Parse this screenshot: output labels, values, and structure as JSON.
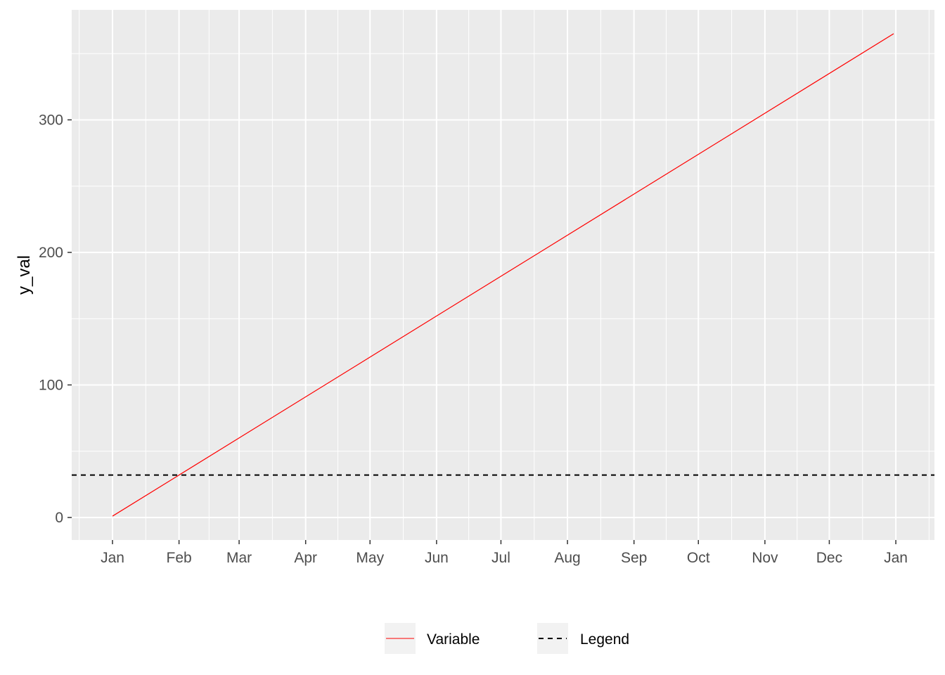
{
  "chart_data": {
    "type": "line",
    "title": "",
    "xlabel": "",
    "ylabel": "y_val",
    "x_tick_labels": [
      "Jan",
      "Feb",
      "Mar",
      "Apr",
      "May",
      "Jun",
      "Jul",
      "Aug",
      "Sep",
      "Oct",
      "Nov",
      "Dec",
      "Jan"
    ],
    "x_tick_dates": [
      "2021-01-01",
      "2021-02-01",
      "2021-03-01",
      "2021-04-01",
      "2021-05-01",
      "2021-06-01",
      "2021-07-01",
      "2021-08-01",
      "2021-09-01",
      "2021-10-01",
      "2021-11-01",
      "2021-12-01",
      "2022-01-01"
    ],
    "xlim": [
      "2020-12-13",
      "2022-01-19"
    ],
    "y_ticks": [
      0,
      100,
      200,
      300
    ],
    "ylim": [
      -17,
      383
    ],
    "series": [
      {
        "name": "Variable",
        "color": "#ff0000",
        "linetype": "solid",
        "points": [
          {
            "x": "2021-01-01",
            "y": 1
          },
          {
            "x": "2021-12-31",
            "y": 365
          }
        ]
      },
      {
        "name": "Legend",
        "color": "#000000",
        "linetype": "dashed",
        "hline": 32
      }
    ],
    "grid": true,
    "legend_position": "bottom",
    "panel_background": "#ebebeb",
    "grid_color": "#ffffff"
  }
}
